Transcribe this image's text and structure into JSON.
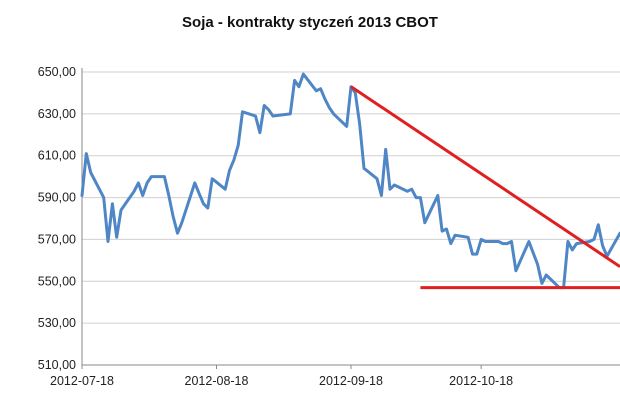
{
  "chart_data": {
    "type": "line",
    "title": "Soja - kontrakty styczeń 2013 CBOT",
    "ylabel": "",
    "ylim": [
      510,
      650
    ],
    "yticks": [
      "510,00",
      "530,00",
      "550,00",
      "570,00",
      "590,00",
      "610,00",
      "630,00",
      "650,00"
    ],
    "ytick_values": [
      510,
      530,
      550,
      570,
      590,
      610,
      630,
      650
    ],
    "xticks": [
      "2012-07-18",
      "2012-08-18",
      "2012-09-18",
      "2012-10-18"
    ],
    "xlim": [
      "2012-07-18",
      "2012-11-19"
    ],
    "grid": "horizontal",
    "line_color": "#4f86c6",
    "series": [
      {
        "name": "",
        "x": [
          "2012-07-18",
          "2012-07-19",
          "2012-07-20",
          "2012-07-23",
          "2012-07-24",
          "2012-07-25",
          "2012-07-26",
          "2012-07-27",
          "2012-07-30",
          "2012-07-31",
          "2012-08-01",
          "2012-08-02",
          "2012-08-03",
          "2012-08-06",
          "2012-08-07",
          "2012-08-08",
          "2012-08-09",
          "2012-08-10",
          "2012-08-13",
          "2012-08-14",
          "2012-08-15",
          "2012-08-16",
          "2012-08-17",
          "2012-08-20",
          "2012-08-21",
          "2012-08-22",
          "2012-08-23",
          "2012-08-24",
          "2012-08-27",
          "2012-08-28",
          "2012-08-29",
          "2012-08-30",
          "2012-08-31",
          "2012-09-04",
          "2012-09-05",
          "2012-09-06",
          "2012-09-07",
          "2012-09-10",
          "2012-09-11",
          "2012-09-12",
          "2012-09-13",
          "2012-09-14",
          "2012-09-17",
          "2012-09-18",
          "2012-09-19",
          "2012-09-20",
          "2012-09-21",
          "2012-09-24",
          "2012-09-25",
          "2012-09-26",
          "2012-09-27",
          "2012-09-28",
          "2012-10-01",
          "2012-10-02",
          "2012-10-03",
          "2012-10-04",
          "2012-10-05",
          "2012-10-08",
          "2012-10-09",
          "2012-10-10",
          "2012-10-11",
          "2012-10-12",
          "2012-10-15",
          "2012-10-16",
          "2012-10-17",
          "2012-10-18",
          "2012-10-19",
          "2012-10-22",
          "2012-10-23",
          "2012-10-24",
          "2012-10-25",
          "2012-10-26",
          "2012-10-29",
          "2012-10-31",
          "2012-11-01",
          "2012-11-02",
          "2012-11-05",
          "2012-11-06",
          "2012-11-07",
          "2012-11-08",
          "2012-11-09",
          "2012-11-12",
          "2012-11-13",
          "2012-11-14",
          "2012-11-15",
          "2012-11-16",
          "2012-11-19"
        ],
        "y": [
          591,
          611,
          602,
          590,
          569,
          587,
          571,
          584,
          593,
          597,
          591,
          597,
          600,
          600,
          591,
          581,
          573,
          578,
          597,
          592,
          587,
          585,
          599,
          594,
          603,
          608,
          615,
          631,
          629,
          621,
          634,
          632,
          629,
          630,
          646,
          643,
          649,
          641,
          642,
          637,
          633,
          630,
          624,
          643,
          640,
          625,
          604,
          599,
          591,
          613,
          594,
          596,
          593,
          594,
          590,
          590,
          578,
          591,
          574,
          575,
          568,
          572,
          571,
          563,
          563,
          570,
          569,
          569,
          568,
          568,
          569,
          555,
          569,
          558,
          549,
          553,
          547,
          547,
          569,
          565,
          568,
          569,
          570,
          577,
          567,
          562,
          573
        ]
      }
    ],
    "annotations": [
      {
        "type": "trend-line",
        "color": "#e02020",
        "from": {
          "x": "2012-09-18",
          "y": 643
        },
        "to": {
          "x": "2012-11-19",
          "y": 557
        }
      },
      {
        "type": "support-line",
        "color": "#e02020",
        "from": {
          "x": "2012-10-04",
          "y": 547
        },
        "to": {
          "x": "2012-11-19",
          "y": 547
        }
      }
    ]
  }
}
